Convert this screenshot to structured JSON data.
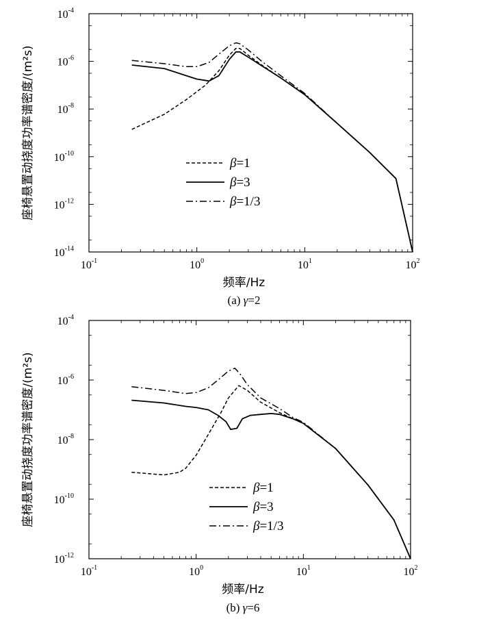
{
  "chart_data": [
    {
      "type": "line",
      "panel": "a",
      "caption_prefix": "(a) ",
      "caption_var": "γ",
      "caption_suffix": "=2",
      "xlabel": "频率/Hz",
      "ylabel": "座椅悬置动挠度功率谱密度/(m²s)",
      "xscale": "log",
      "yscale": "log",
      "xlim": [
        0.1,
        100
      ],
      "ylim": [
        1e-14,
        0.0001
      ],
      "x_ticks": [
        {
          "base": "10",
          "exp": "-1"
        },
        {
          "base": "10",
          "exp": "0"
        },
        {
          "base": "10",
          "exp": "1"
        },
        {
          "base": "10",
          "exp": "2"
        }
      ],
      "y_ticks": [
        {
          "base": "10",
          "exp": "-14"
        },
        {
          "base": "10",
          "exp": "-12"
        },
        {
          "base": "10",
          "exp": "-10"
        },
        {
          "base": "10",
          "exp": "-8"
        },
        {
          "base": "10",
          "exp": "-6"
        },
        {
          "base": "10",
          "exp": "-4"
        }
      ],
      "legend_position": "center-left",
      "series": [
        {
          "name_var": "β",
          "name_rest": "=1",
          "style": "dashed",
          "x": [
            0.25,
            0.5,
            0.8,
            1.2,
            1.6,
            2.0,
            2.3,
            2.5,
            3.0,
            4.0,
            6.0,
            10,
            20,
            40,
            70,
            100
          ],
          "y": [
            1.4e-09,
            6e-09,
            2.5e-08,
            1e-07,
            4e-07,
            1.8e-06,
            3.5e-06,
            3.5e-06,
            1.8e-06,
            7e-07,
            2e-07,
            4e-08,
            2.5e-09,
            1.5e-10,
            1.2e-11,
            1e-14
          ]
        },
        {
          "name_var": "β",
          "name_rest": "=3",
          "style": "solid",
          "x": [
            0.25,
            0.5,
            0.8,
            1.0,
            1.3,
            1.6,
            2.0,
            2.3,
            2.5,
            3.0,
            4.0,
            6.0,
            10,
            20,
            40,
            70,
            100
          ],
          "y": [
            7e-07,
            5e-07,
            2.5e-07,
            1.8e-07,
            1.5e-07,
            2.5e-07,
            1.2e-06,
            2.5e-06,
            2.5e-06,
            1.5e-06,
            6.5e-07,
            2e-07,
            4e-08,
            2.5e-09,
            1.5e-10,
            1.2e-11,
            1e-14
          ]
        },
        {
          "name_var": "β",
          "name_rest": "=1/3",
          "style": "dashdot",
          "x": [
            0.25,
            0.5,
            0.8,
            1.0,
            1.3,
            1.6,
            2.0,
            2.3,
            2.5,
            3.0,
            4.0,
            6.0,
            10,
            20,
            40,
            70,
            100
          ],
          "y": [
            1.1e-06,
            8e-07,
            6e-07,
            6e-07,
            9e-07,
            2e-06,
            4.5e-06,
            6e-06,
            5.5e-06,
            3e-06,
            1e-06,
            2.5e-07,
            4.5e-08,
            2.5e-09,
            1.5e-10,
            1.2e-11,
            1e-14
          ]
        }
      ]
    },
    {
      "type": "line",
      "panel": "b",
      "caption_prefix": "(b) ",
      "caption_var": "γ",
      "caption_suffix": "=6",
      "xlabel": "频率/Hz",
      "ylabel": "座椅悬置动挠度功率谱密度/(m²s)",
      "xscale": "log",
      "yscale": "log",
      "xlim": [
        0.1,
        100
      ],
      "ylim": [
        1e-12,
        0.0001
      ],
      "x_ticks": [
        {
          "base": "10",
          "exp": "-1"
        },
        {
          "base": "10",
          "exp": "0"
        },
        {
          "base": "10",
          "exp": "1"
        },
        {
          "base": "10",
          "exp": "2"
        }
      ],
      "y_ticks": [
        {
          "base": "10",
          "exp": "-12"
        },
        {
          "base": "10",
          "exp": "-10"
        },
        {
          "base": "10",
          "exp": "-8"
        },
        {
          "base": "10",
          "exp": "-6"
        },
        {
          "base": "10",
          "exp": "-4"
        }
      ],
      "legend_position": "center",
      "series": [
        {
          "name_var": "β",
          "name_rest": "=1",
          "style": "dashed",
          "x": [
            0.25,
            0.5,
            0.7,
            0.8,
            1.0,
            1.3,
            1.7,
            2.0,
            2.5,
            3.0,
            4.0,
            6.0,
            8.0,
            10,
            20,
            40,
            70,
            100
          ],
          "y": [
            8e-10,
            6.5e-10,
            8e-10,
            1.1e-09,
            3e-09,
            1.5e-08,
            8e-08,
            2.5e-07,
            6.5e-07,
            4.5e-07,
            1.8e-07,
            8e-08,
            5e-08,
            3.5e-08,
            5e-09,
            3e-10,
            2e-11,
            1e-12
          ]
        },
        {
          "name_var": "β",
          "name_rest": "=3",
          "style": "solid",
          "x": [
            0.25,
            0.5,
            0.8,
            1.0,
            1.3,
            1.6,
            1.9,
            2.1,
            2.4,
            2.7,
            3.2,
            4.0,
            5.0,
            6.0,
            8.0,
            10,
            20,
            40,
            70,
            100
          ],
          "y": [
            2.1e-07,
            1.7e-07,
            1.3e-07,
            1.2e-07,
            1e-07,
            6.5e-08,
            4e-08,
            2.2e-08,
            2.4e-08,
            5e-08,
            6.5e-08,
            7e-08,
            7.5e-08,
            7e-08,
            5e-08,
            3.5e-08,
            5e-09,
            3e-10,
            2e-11,
            1e-12
          ]
        },
        {
          "name_var": "β",
          "name_rest": "=1/3",
          "style": "dashdot",
          "x": [
            0.25,
            0.5,
            0.8,
            1.0,
            1.3,
            1.6,
            2.0,
            2.3,
            2.6,
            3.0,
            4.0,
            6.0,
            8.0,
            10,
            20,
            40,
            70,
            100
          ],
          "y": [
            6e-07,
            4.5e-07,
            3.5e-07,
            3.8e-07,
            5.5e-07,
            1e-06,
            2e-06,
            2.5e-06,
            1.5e-06,
            7e-07,
            2.5e-07,
            1.1e-07,
            5.5e-08,
            3.8e-08,
            5e-09,
            3e-10,
            2e-11,
            1e-12
          ]
        }
      ]
    }
  ]
}
